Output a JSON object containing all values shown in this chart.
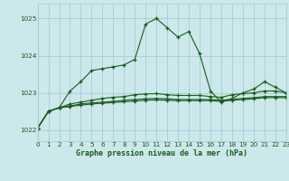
{
  "title": "Graphe pression niveau de la mer (hPa)",
  "bg_color": "#cce8ea",
  "line_color": "#1a5c1a",
  "grid_color": "#99cccc",
  "xlim": [
    0,
    23
  ],
  "ylim": [
    1021.7,
    1025.4
  ],
  "yticks": [
    1022,
    1023,
    1024,
    1025
  ],
  "xticks": [
    0,
    1,
    2,
    3,
    4,
    5,
    6,
    7,
    8,
    9,
    10,
    11,
    12,
    13,
    14,
    15,
    16,
    17,
    18,
    19,
    20,
    21,
    22,
    23
  ],
  "series": [
    [
      1022.05,
      1022.5,
      1022.6,
      1023.05,
      1023.3,
      1023.6,
      1023.65,
      1023.7,
      1023.75,
      1023.9,
      1024.85,
      1025.0,
      1024.75,
      1024.5,
      1024.65,
      1024.05,
      1023.05,
      1022.75,
      1022.85,
      1023.0,
      1023.1,
      1023.3,
      1023.15,
      1023.0
    ],
    [
      1022.05,
      1022.5,
      1022.6,
      1022.7,
      1022.75,
      1022.8,
      1022.85,
      1022.88,
      1022.9,
      1022.95,
      1022.97,
      1022.98,
      1022.95,
      1022.93,
      1022.93,
      1022.93,
      1022.9,
      1022.88,
      1022.95,
      1022.98,
      1023.0,
      1023.05,
      1023.05,
      1023.0
    ],
    [
      1022.05,
      1022.5,
      1022.6,
      1022.65,
      1022.7,
      1022.73,
      1022.75,
      1022.77,
      1022.8,
      1022.82,
      1022.84,
      1022.85,
      1022.84,
      1022.82,
      1022.82,
      1022.82,
      1022.82,
      1022.8,
      1022.83,
      1022.85,
      1022.87,
      1022.9,
      1022.9,
      1022.9
    ],
    [
      1022.05,
      1022.5,
      1022.6,
      1022.63,
      1022.67,
      1022.7,
      1022.72,
      1022.74,
      1022.76,
      1022.78,
      1022.8,
      1022.81,
      1022.8,
      1022.79,
      1022.79,
      1022.79,
      1022.79,
      1022.77,
      1022.8,
      1022.82,
      1022.84,
      1022.87,
      1022.87,
      1022.87
    ]
  ],
  "marker": "+",
  "markersize": 3.5,
  "markeredgewidth": 0.9,
  "linewidth": 0.8,
  "title_fontsize": 6.0,
  "tick_fontsize": 5.2
}
